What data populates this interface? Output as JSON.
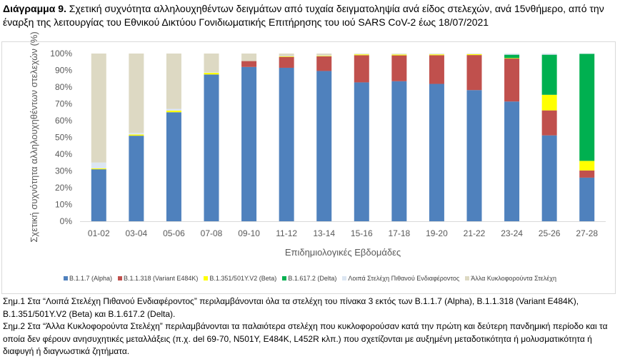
{
  "title": {
    "prefix": "Διάγραμμα 9.",
    "text": " Σχετική συχνότητα αλληλουχηθέντων δειγμάτων από τυχαία δειγματοληψία ανά είδος στελεχών, ανά 15νθήμερο, από την έναρξη της λειτουργίας του Εθνικού Δικτύου Γονιδιωματικής Επιτήρησης του ιού SARS CoV-2 έως 18/07/2021"
  },
  "chart_data": {
    "type": "bar",
    "stacked": true,
    "xlabel": "Επιδημιολογικές Εβδομάδες",
    "ylabel": "Σχετική συχνότητα αλληλουχηθέντων στελεχών (%)",
    "ylim": [
      0,
      100
    ],
    "yticks": [
      "0%",
      "10%",
      "20%",
      "30%",
      "40%",
      "50%",
      "60%",
      "70%",
      "80%",
      "90%",
      "100%"
    ],
    "legend_position": "bottom",
    "categories": [
      "01-02",
      "03-04",
      "05-06",
      "07-08",
      "09-10",
      "11-12",
      "13-14",
      "15-16",
      "17-18",
      "19-20",
      "21-22",
      "23-24",
      "25-26",
      "27-28"
    ],
    "series": [
      {
        "name": "B.1.1.7 (Alpha)",
        "color": "#4f81bd",
        "values": [
          31,
          51,
          65,
          87.5,
          92,
          91.5,
          89.6,
          82.8,
          83.5,
          81.9,
          78.2,
          71.4,
          51.2,
          26
        ]
      },
      {
        "name": "B.1.1.318 (Variant E484K)",
        "color": "#c0504d",
        "values": [
          0,
          0,
          0,
          0,
          3.5,
          6.5,
          8.7,
          16.2,
          15.4,
          17.1,
          20.9,
          25.6,
          14.9,
          4.3
        ]
      },
      {
        "name": "B.1.351/501Y.V2 (Beta)",
        "color": "#ffff00",
        "values": [
          0.5,
          0.7,
          1,
          1,
          0,
          0.3,
          0.3,
          0.5,
          0.5,
          0.5,
          0.5,
          0.3,
          9.3,
          5.7
        ]
      },
      {
        "name": "B.1.617.2 (Delta)",
        "color": "#00b050",
        "values": [
          0,
          0,
          0,
          0,
          0,
          0,
          0,
          0,
          0,
          0,
          0,
          2,
          23.9,
          63.9
        ]
      },
      {
        "name": "Λοιπά Στελέχη Πιθανού Ενδιαφέροντος",
        "color": "#dce6f2",
        "values": [
          3.5,
          1,
          1,
          0.3,
          0,
          0.2,
          0.2,
          0.2,
          0.3,
          0.3,
          0.3,
          0.7,
          0.7,
          0.1
        ]
      },
      {
        "name": "Άλλα Κυκλοφορούντα Στελέχη",
        "color": "#ddd9c3",
        "values": [
          65,
          47.3,
          33,
          11.2,
          4.5,
          1.5,
          1.2,
          0.3,
          0.3,
          0.2,
          0.1,
          0,
          0,
          0
        ]
      }
    ]
  },
  "notes": [
    "Σημ.1 Στα “Λοιπά Στελέχη Πιθανού Ενδιαφέροντος” περιλαμβάνονται όλα τα στελέχη του πίνακα 3 εκτός των B.1.1.7 (Alpha), B.1.1.318 (Variant E484K), B.1.351/501Y.V2 (Beta) και B.1.617.2 (Delta).",
    "Σημ.2 Στα “Άλλα Κυκλοφορούντα Στελέχη” περιλαμβάνονται τα παλαιότερα στελέχη που κυκλοφορούσαν κατά την πρώτη και δεύτερη πανδημική περίοδο και τα οποία δεν φέρουν ανησυχητικές μεταλλάξεις (π.χ. del 69-70, N501Y, E484K, L452R κλπ.) που σχετίζονται με αυξημένη μεταδοτικότητα ή μολυσματικότητα ή διαφυγή ή διαγνωστικά ζητήματα."
  ]
}
